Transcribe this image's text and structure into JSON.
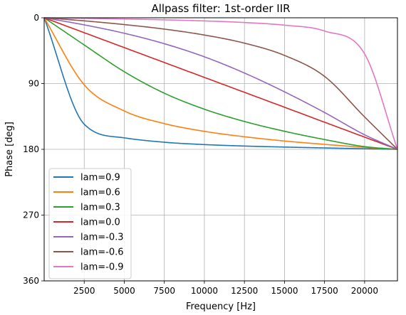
{
  "chart_data": {
    "type": "line",
    "title": "Allpass filter: 1st-order IIR",
    "xlabel": "Frequency [Hz]",
    "ylabel": "Phase [deg]",
    "xlim": [
      0,
      22050
    ],
    "ylim": [
      360,
      0
    ],
    "y_inverted": true,
    "grid": true,
    "legend_position": "lower-left",
    "x_ticks": [
      2500,
      5000,
      7500,
      10000,
      12500,
      15000,
      17500,
      20000
    ],
    "x_tick_labels": [
      "2500",
      "5000",
      "7500",
      "10000",
      "12500",
      "15000",
      "17500",
      "20000"
    ],
    "y_ticks": [
      0,
      90,
      180,
      270,
      360
    ],
    "y_tick_labels": [
      "0",
      "90",
      "180",
      "270",
      "360"
    ],
    "x": [
      0,
      2500,
      5000,
      7500,
      10000,
      12500,
      15000,
      17500,
      20000,
      22050
    ],
    "series": [
      {
        "name": "lam=0.9",
        "color": "#1f77b4",
        "values": [
          0,
          145.6,
          164.3,
          170.3,
          173.5,
          175.5,
          176.9,
          178.1,
          179.2,
          180
        ]
      },
      {
        "name": "lam=0.6",
        "color": "#ff7f0e",
        "values": [
          0,
          91.7,
          127.5,
          144.8,
          155.4,
          162.8,
          168.6,
          173.2,
          177.3,
          180
        ]
      },
      {
        "name": "lam=0.3",
        "color": "#2ca02c",
        "values": [
          0,
          37.2,
          73.8,
          103.2,
          125.1,
          141.9,
          155.3,
          166.6,
          176.3,
          180
        ]
      },
      {
        "name": "lam=0.0",
        "color": "#d62728",
        "values": [
          0,
          20.4,
          40.8,
          61.2,
          81.6,
          102.0,
          122.4,
          142.9,
          163.3,
          180
        ]
      },
      {
        "name": "lam=-0.3",
        "color": "#9467bd",
        "values": [
          0,
          9.7,
          21.2,
          35.5,
          53.4,
          75.6,
          101.3,
          129.6,
          160.1,
          180
        ]
      },
      {
        "name": "lam=-0.6",
        "color": "#8c564b",
        "values": [
          0,
          4.2,
          9.3,
          15.5,
          23.6,
          34.7,
          51.5,
          80.2,
          135.7,
          180
        ]
      },
      {
        "name": "lam=-0.9",
        "color": "#e377c2",
        "values": [
          0,
          0.8,
          1.7,
          2.8,
          4.3,
          6.5,
          10.1,
          18.1,
          49.4,
          180
        ]
      }
    ]
  }
}
